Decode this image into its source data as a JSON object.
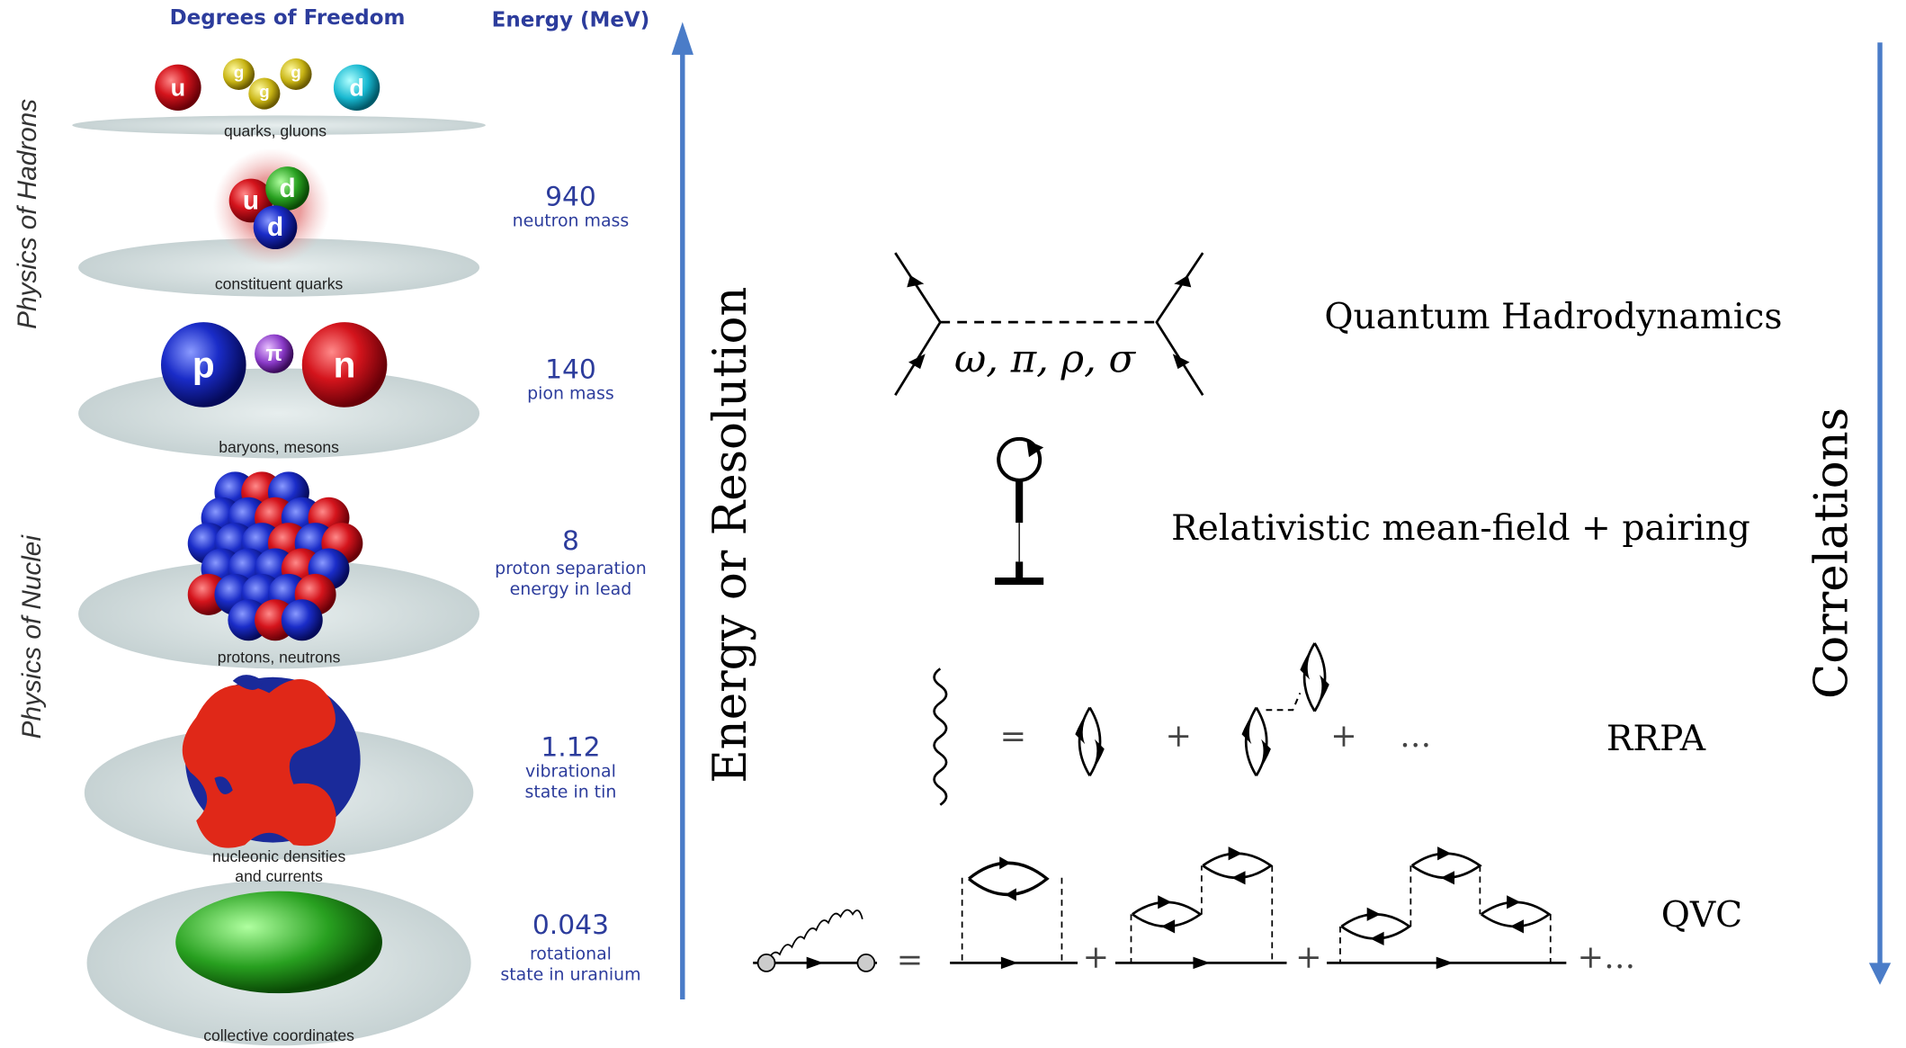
{
  "header": {
    "left": "Degrees of Freedom",
    "right": "Energy (MeV)"
  },
  "regions": [
    "Physics of Hadrons",
    "Physics of Nuclei"
  ],
  "particles": {
    "quarks": [
      "u",
      "g",
      "g",
      "g",
      "d"
    ],
    "constituent": [
      "u",
      "d",
      "d"
    ],
    "baryons": [
      "p",
      "π",
      "n"
    ]
  },
  "levels": [
    {
      "label": [
        "quarks, gluons"
      ]
    },
    {
      "label": [
        "constituent quarks"
      ],
      "energy": "940",
      "note": [
        "neutron mass"
      ]
    },
    {
      "label": [
        "baryons, mesons"
      ],
      "energy": "140",
      "note": [
        "pion mass"
      ]
    },
    {
      "label": [
        "protons, neutrons"
      ],
      "energy": "8",
      "note": [
        "proton separation",
        "energy in lead"
      ]
    },
    {
      "label": [
        "nucleonic densities",
        "and currents"
      ],
      "energy": "1.12",
      "note": [
        "vibrational",
        "state in tin"
      ]
    },
    {
      "label": [
        "collective coordinates"
      ],
      "energy": "0.043",
      "note": [
        "rotational",
        "state in uranium"
      ]
    }
  ],
  "axes": {
    "left": "Energy or Resolution",
    "right": "Correlations"
  },
  "models": [
    {
      "name": "Quantum Hadrodynamics",
      "mesons": "ω, π, ρ, σ"
    },
    {
      "name": "Relativistic mean-field + pairing"
    },
    {
      "name": "RRPA",
      "equation": [
        "=",
        "+",
        "+",
        "…"
      ]
    },
    {
      "name": "QVC",
      "equation": [
        "=",
        "+",
        "+",
        "+…"
      ]
    }
  ]
}
